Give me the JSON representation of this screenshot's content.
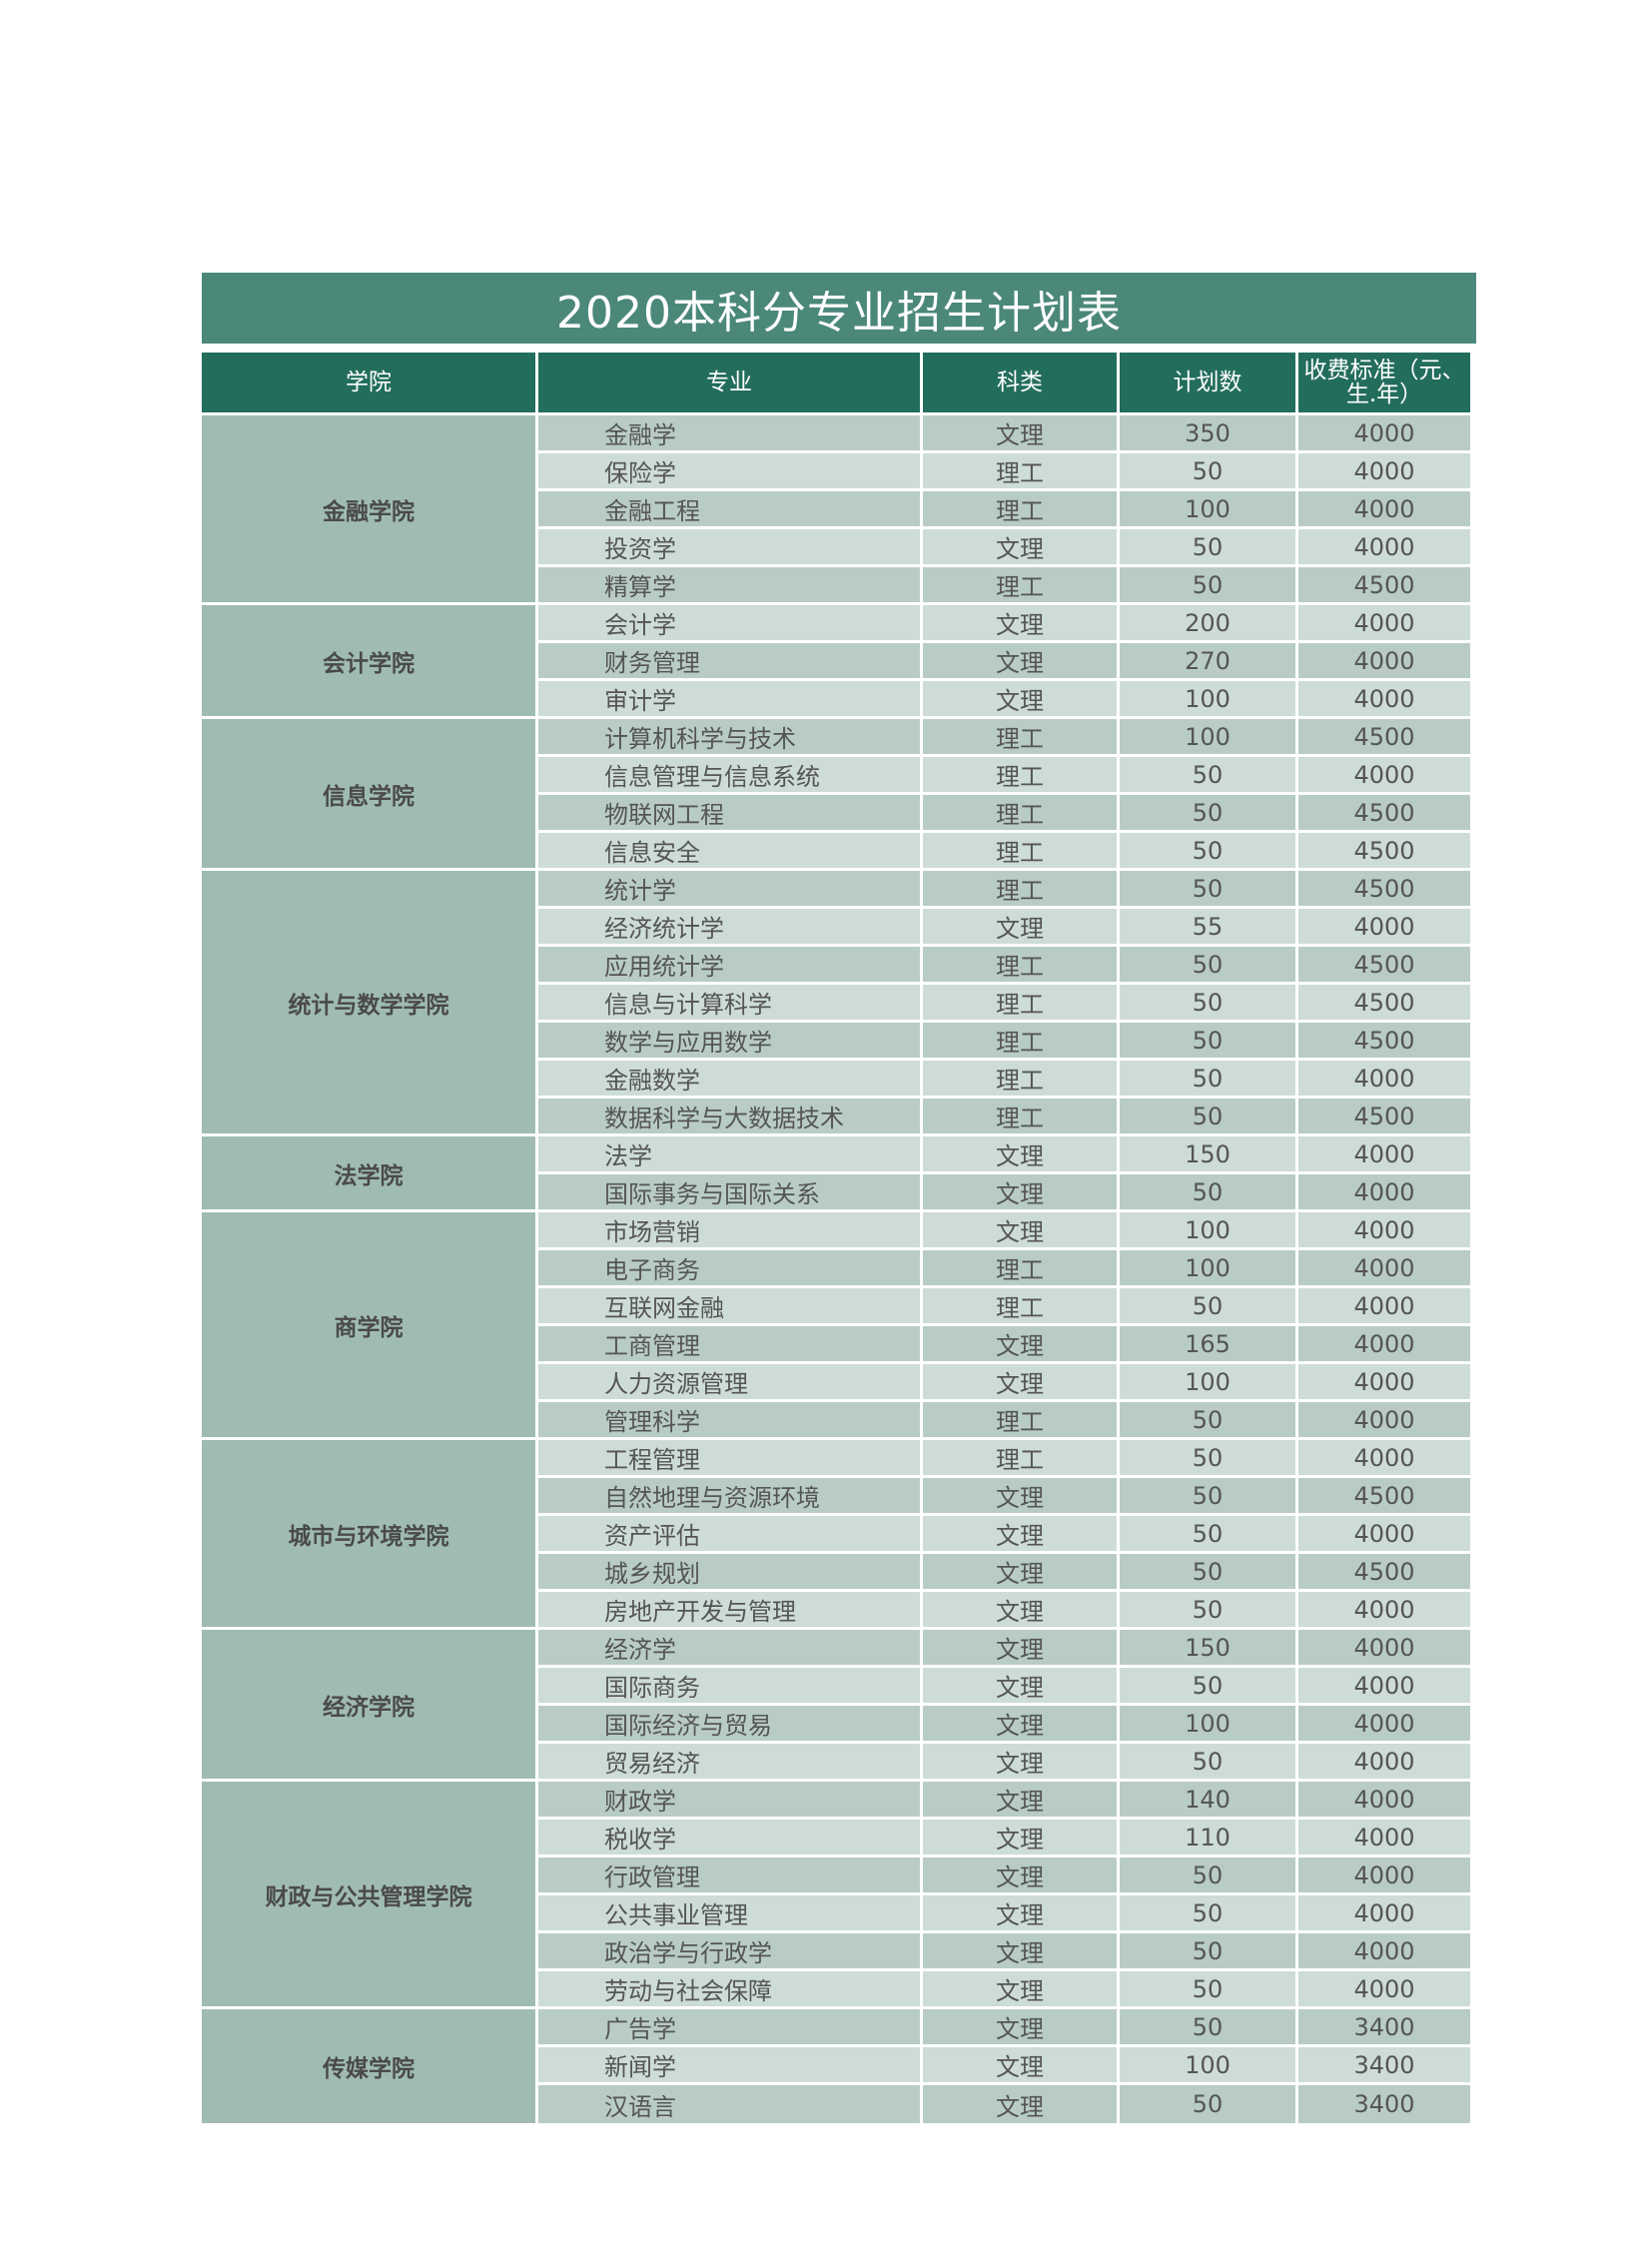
{
  "title": "2020本科分专业招生计划表",
  "headers": [
    "学院",
    "专业",
    "科类",
    "计划数",
    "收费标准（元、生.年）"
  ],
  "colors": {
    "title_bg": "#4b887a",
    "header_bg": "#236d5d",
    "college_bg": "#a0bcb2",
    "row_dark": "#b8ccc5",
    "row_light": "#cddcd7"
  },
  "colleges": [
    {
      "name": "金融学院",
      "majors": [
        [
          "金融学",
          "文理",
          "350",
          "4000"
        ],
        [
          "保险学",
          "理工",
          "50",
          "4000"
        ],
        [
          "金融工程",
          "理工",
          "100",
          "4000"
        ],
        [
          "投资学",
          "文理",
          "50",
          "4000"
        ],
        [
          "精算学",
          "理工",
          "50",
          "4500"
        ]
      ]
    },
    {
      "name": "会计学院",
      "majors": [
        [
          "会计学",
          "文理",
          "200",
          "4000"
        ],
        [
          "财务管理",
          "文理",
          "270",
          "4000"
        ],
        [
          "审计学",
          "文理",
          "100",
          "4000"
        ]
      ]
    },
    {
      "name": "信息学院",
      "majors": [
        [
          "计算机科学与技术",
          "理工",
          "100",
          "4500"
        ],
        [
          "信息管理与信息系统",
          "理工",
          "50",
          "4000"
        ],
        [
          "物联网工程",
          "理工",
          "50",
          "4500"
        ],
        [
          "信息安全",
          "理工",
          "50",
          "4500"
        ]
      ]
    },
    {
      "name": "统计与数学学院",
      "majors": [
        [
          "统计学",
          "理工",
          "50",
          "4500"
        ],
        [
          "经济统计学",
          "文理",
          "55",
          "4000"
        ],
        [
          "应用统计学",
          "理工",
          "50",
          "4500"
        ],
        [
          "信息与计算科学",
          "理工",
          "50",
          "4500"
        ],
        [
          "数学与应用数学",
          "理工",
          "50",
          "4500"
        ],
        [
          "金融数学",
          "理工",
          "50",
          "4000"
        ],
        [
          "数据科学与大数据技术",
          "理工",
          "50",
          "4500"
        ]
      ]
    },
    {
      "name": "法学院",
      "majors": [
        [
          "法学",
          "文理",
          "150",
          "4000"
        ],
        [
          "国际事务与国际关系",
          "文理",
          "50",
          "4000"
        ]
      ]
    },
    {
      "name": "商学院",
      "majors": [
        [
          "市场营销",
          "文理",
          "100",
          "4000"
        ],
        [
          "电子商务",
          "理工",
          "100",
          "4000"
        ],
        [
          "互联网金融",
          "理工",
          "50",
          "4000"
        ],
        [
          "工商管理",
          "文理",
          "165",
          "4000"
        ],
        [
          "人力资源管理",
          "文理",
          "100",
          "4000"
        ],
        [
          "管理科学",
          "理工",
          "50",
          "4000"
        ]
      ]
    },
    {
      "name": "城市与环境学院",
      "majors": [
        [
          "工程管理",
          "理工",
          "50",
          "4000"
        ],
        [
          "自然地理与资源环境",
          "文理",
          "50",
          "4500"
        ],
        [
          "资产评估",
          "文理",
          "50",
          "4000"
        ],
        [
          "城乡规划",
          "文理",
          "50",
          "4500"
        ],
        [
          "房地产开发与管理",
          "文理",
          "50",
          "4000"
        ]
      ]
    },
    {
      "name": "经济学院",
      "majors": [
        [
          "经济学",
          "文理",
          "150",
          "4000"
        ],
        [
          "国际商务",
          "文理",
          "50",
          "4000"
        ],
        [
          "国际经济与贸易",
          "文理",
          "100",
          "4000"
        ],
        [
          "贸易经济",
          "文理",
          "50",
          "4000"
        ]
      ]
    },
    {
      "name": "财政与公共管理学院",
      "majors": [
        [
          "财政学",
          "文理",
          "140",
          "4000"
        ],
        [
          "税收学",
          "文理",
          "110",
          "4000"
        ],
        [
          "行政管理",
          "文理",
          "50",
          "4000"
        ],
        [
          "公共事业管理",
          "文理",
          "50",
          "4000"
        ],
        [
          "政治学与行政学",
          "文理",
          "50",
          "4000"
        ],
        [
          "劳动与社会保障",
          "文理",
          "50",
          "4000"
        ]
      ]
    },
    {
      "name": "传媒学院",
      "majors": [
        [
          "广告学",
          "文理",
          "50",
          "3400"
        ],
        [
          "新闻学",
          "文理",
          "100",
          "3400"
        ],
        [
          "汉语言",
          "文理",
          "50",
          "3400"
        ]
      ]
    }
  ]
}
